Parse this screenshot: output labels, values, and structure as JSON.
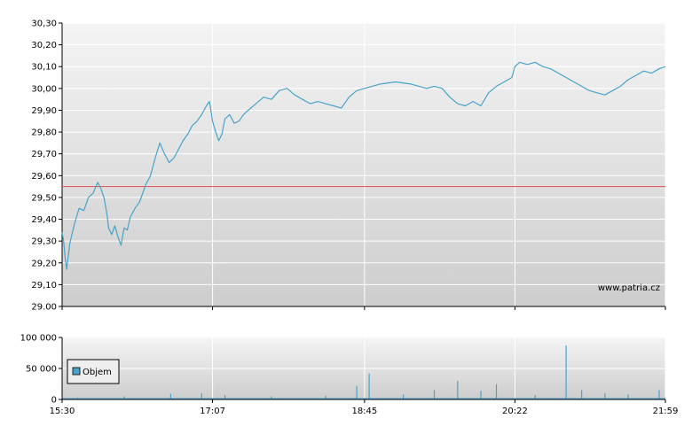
{
  "watermark": "www.patria.cz",
  "colors": {
    "price_line": "#4aa3c8",
    "reference_line": "#e05050",
    "volume_bar": "#4aa3c8",
    "grid": "#ffffff",
    "panel_top": "#f3f3f3",
    "panel_bottom": "#cfcfcf"
  },
  "chart_data": [
    {
      "type": "line",
      "title": "",
      "xlabel": "",
      "ylabel": "",
      "ylim": [
        29.0,
        30.3
      ],
      "y_ticks": [
        "29.00",
        "29,10",
        "29,20",
        "29,30",
        "29,40",
        "29,50",
        "29,60",
        "29,70",
        "29,80",
        "29,90",
        "30,00",
        "30,10",
        "30,20",
        "30,30"
      ],
      "x_ticks": [
        "15:30",
        "17:07",
        "18:45",
        "20:22",
        "21:59"
      ],
      "grid": true,
      "reference_line": 29.55,
      "series": [
        {
          "x": [
            "15:30",
            "15:31",
            "15:32",
            "15:33",
            "15:35",
            "15:38",
            "15:41",
            "15:44",
            "15:47",
            "15:50",
            "15:53",
            "15:55",
            "15:57",
            "15:59",
            "16:00",
            "16:02",
            "16:04",
            "16:06",
            "16:08",
            "16:10",
            "16:12",
            "16:14",
            "16:17",
            "16:20",
            "16:22",
            "16:24",
            "16:27",
            "16:30",
            "16:33",
            "16:36",
            "16:39",
            "16:42",
            "16:45",
            "16:48",
            "16:51",
            "16:54",
            "16:57",
            "17:00",
            "17:03",
            "17:05",
            "17:07",
            "17:09",
            "17:11",
            "17:13",
            "17:15",
            "17:18",
            "17:21",
            "17:24",
            "17:27",
            "17:30",
            "17:35",
            "17:40",
            "17:45",
            "17:50",
            "17:55",
            "18:00",
            "18:05",
            "18:10",
            "18:15",
            "18:20",
            "18:25",
            "18:30",
            "18:35",
            "18:40",
            "18:45",
            "18:55",
            "19:05",
            "19:15",
            "19:25",
            "19:30",
            "19:35",
            "19:40",
            "19:45",
            "19:50",
            "19:55",
            "20:00",
            "20:05",
            "20:10",
            "20:15",
            "20:20",
            "20:22",
            "20:25",
            "20:30",
            "20:35",
            "20:40",
            "20:45",
            "20:50",
            "20:55",
            "21:00",
            "21:05",
            "21:10",
            "21:15",
            "21:20",
            "21:25",
            "21:30",
            "21:35",
            "21:40",
            "21:45",
            "21:50",
            "21:55",
            "21:59"
          ],
          "values": [
            29.34,
            29.3,
            29.22,
            29.17,
            29.29,
            29.38,
            29.45,
            29.44,
            29.5,
            29.52,
            29.57,
            29.54,
            29.5,
            29.42,
            29.36,
            29.33,
            29.37,
            29.32,
            29.28,
            29.36,
            29.35,
            29.41,
            29.45,
            29.48,
            29.52,
            29.56,
            29.6,
            29.68,
            29.75,
            29.7,
            29.66,
            29.68,
            29.72,
            29.76,
            29.79,
            29.83,
            29.85,
            29.88,
            29.92,
            29.94,
            29.85,
            29.8,
            29.76,
            29.79,
            29.86,
            29.88,
            29.84,
            29.85,
            29.88,
            29.9,
            29.93,
            29.96,
            29.95,
            29.99,
            30.0,
            29.97,
            29.95,
            29.93,
            29.94,
            29.93,
            29.92,
            29.91,
            29.96,
            29.99,
            30.0,
            30.02,
            30.03,
            30.02,
            30.0,
            30.01,
            30.0,
            29.96,
            29.93,
            29.92,
            29.94,
            29.92,
            29.98,
            30.01,
            30.03,
            30.05,
            30.1,
            30.12,
            30.11,
            30.12,
            30.1,
            30.09,
            30.07,
            30.05,
            30.03,
            30.01,
            29.99,
            29.98,
            29.97,
            29.99,
            30.01,
            30.04,
            30.06,
            30.08,
            30.07,
            30.09,
            30.1
          ]
        }
      ]
    },
    {
      "type": "bar",
      "title": "",
      "xlabel": "",
      "ylabel": "",
      "ylim": [
        0,
        100000
      ],
      "y_ticks": [
        "0",
        "50 000",
        "100 000"
      ],
      "x_ticks": [
        "15:30",
        "17:07",
        "18:45",
        "20:22",
        "21:59"
      ],
      "legend": {
        "placement": "left",
        "label": "Objem"
      },
      "series": [
        {
          "name": "Objem",
          "x": [
            "15:40",
            "16:10",
            "16:40",
            "17:00",
            "17:15",
            "17:45",
            "18:20",
            "18:40",
            "18:48",
            "19:10",
            "19:30",
            "19:45",
            "20:00",
            "20:10",
            "20:35",
            "20:55",
            "21:05",
            "21:20",
            "21:35",
            "21:55"
          ],
          "values": [
            3000,
            5000,
            9000,
            10000,
            7000,
            5000,
            6000,
            22000,
            42000,
            8000,
            15000,
            30000,
            14000,
            25000,
            7000,
            87000,
            15000,
            10000,
            8000,
            15000
          ]
        }
      ]
    }
  ]
}
